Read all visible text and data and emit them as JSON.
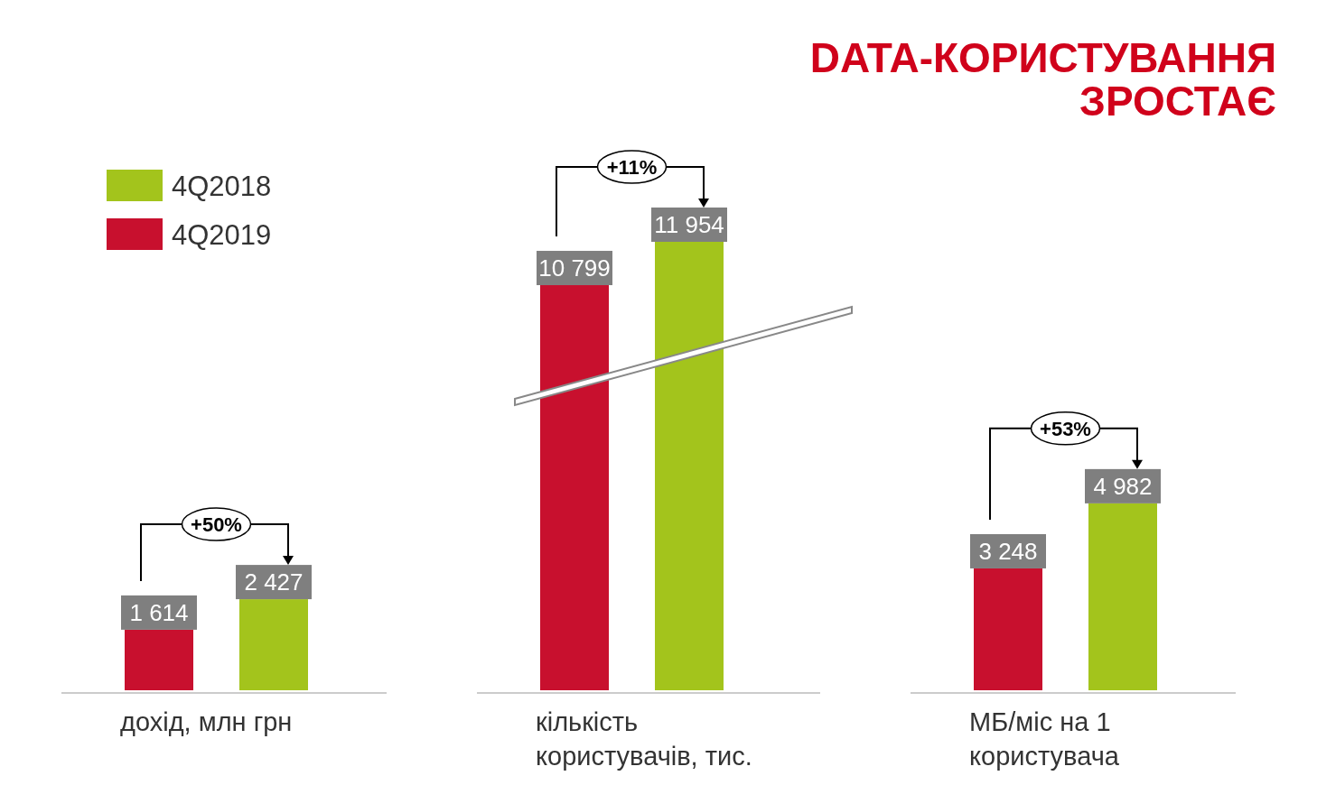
{
  "chart_data": [
    {
      "type": "bar",
      "categories": [
        "дохід, млн грн"
      ],
      "series": [
        {
          "name": "4Q2019",
          "color": "#c8102e",
          "values": [
            1614
          ]
        },
        {
          "name": "4Q2018",
          "color": "#a3c41c",
          "values": [
            2427
          ]
        }
      ],
      "data_labels": true,
      "legend": "top left",
      "annotations": [
        "+50%"
      ]
    },
    {
      "type": "bar",
      "categories": [
        "кількість користувачів, тис."
      ],
      "series": [
        {
          "color": "#c8102e",
          "values": [
            10799
          ]
        },
        {
          "color": "#a3c41c",
          "values": [
            11954
          ]
        }
      ],
      "data_labels": true,
      "annotations": [
        "+11%"
      ]
    },
    {
      "type": "bar",
      "title": "DATA-КОРИСТУВАННЯ ЗРОСТАЄ",
      "categories": [
        "МБ/міс на 1 користувача"
      ],
      "series": [
        {
          "color": "#c8102e",
          "values": [
            3248
          ]
        },
        {
          "color": "#a3c41c",
          "values": [
            4982
          ]
        }
      ],
      "data_labels": true,
      "annotations": [
        "+53%"
      ]
    }
  ]
}
